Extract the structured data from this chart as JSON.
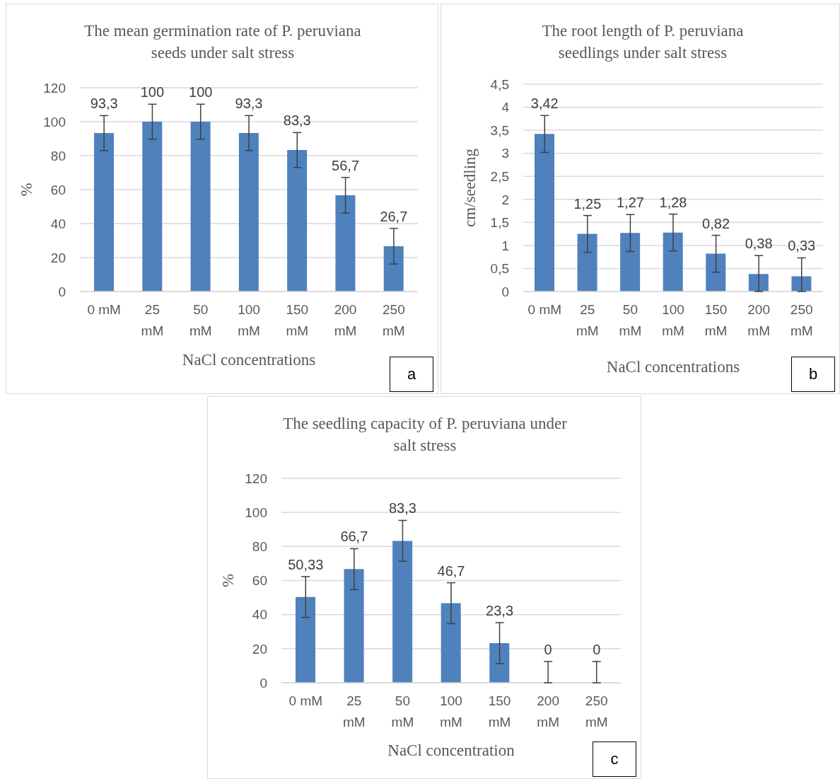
{
  "chart_data": [
    {
      "type": "bar",
      "title": "The mean germination rate of P. peruviana seeds under salt stress",
      "xlabel": "NaCl concentrations",
      "ylabel": "%",
      "categories": [
        "0 mM",
        "25 mM",
        "50 mM",
        "100 mM",
        "150 mM",
        "200 mM",
        "250 mM"
      ],
      "values": [
        93.3,
        100,
        100,
        93.3,
        83.3,
        56.7,
        26.7
      ],
      "errors": [
        10.3,
        10.3,
        10.3,
        10.3,
        10.3,
        10.5,
        10.5
      ],
      "value_labels": [
        "93,3",
        "100",
        "100",
        "93,3",
        "83,3",
        "56,7",
        "26,7"
      ],
      "color": "#4f81bd",
      "ylim": [
        0,
        120
      ],
      "yticks": [
        0,
        20,
        40,
        60,
        80,
        100,
        120
      ],
      "grid": "y",
      "legend": false,
      "annotations": [
        "a"
      ]
    },
    {
      "type": "bar",
      "title": "The root length of P. peruviana seedlings under salt stress",
      "xlabel": "NaCl concentrations",
      "ylabel": "cm/seedling",
      "categories": [
        "0 mM",
        "25 mM",
        "50 mM",
        "100 mM",
        "150 mM",
        "200 mM",
        "250 mM"
      ],
      "values": [
        3.42,
        1.25,
        1.27,
        1.28,
        0.82,
        0.38,
        0.33
      ],
      "errors": [
        0.4,
        0.4,
        0.4,
        0.4,
        0.4,
        [
          0,
          0.78
        ],
        [
          0,
          0.73
        ]
      ],
      "value_labels": [
        "3,42",
        "1,25",
        "1,27",
        "1,28",
        "0,82",
        "0,38",
        "0,33"
      ],
      "color": "#4f81bd",
      "ylim": [
        0,
        4.5
      ],
      "yticks": [
        0,
        {
          "value": 0.5,
          "label": "0,5"
        },
        1,
        {
          "value": 1.5,
          "label": "1,5"
        },
        2,
        {
          "value": 2.5,
          "label": "2,5"
        },
        3,
        {
          "value": 3.5,
          "label": "3,5"
        },
        4,
        {
          "value": 4.5,
          "label": "4,5"
        }
      ],
      "grid": "y",
      "legend": false,
      "annotations": [
        "b"
      ]
    },
    {
      "type": "bar",
      "title": "The seedling capacity of P. peruviana under salt stress",
      "xlabel": "NaCl concentration",
      "ylabel": "%",
      "categories": [
        "0 mM",
        "25 mM",
        "50 mM",
        "100 mM",
        "150 mM",
        "200 mM",
        "250 mM"
      ],
      "values": [
        50.33,
        66.7,
        83.3,
        46.7,
        23.3,
        0,
        0
      ],
      "errors": [
        12,
        12,
        12,
        12,
        12,
        [
          0,
          12.5
        ],
        [
          0,
          12.5
        ]
      ],
      "value_labels": [
        "50,33",
        "66,7",
        "83,3",
        "46,7",
        "23,3",
        "0",
        "0"
      ],
      "color": "#4f81bd",
      "ylim": [
        0,
        120
      ],
      "yticks": [
        0,
        20,
        40,
        60,
        80,
        100,
        120
      ],
      "grid": "y",
      "legend": false,
      "annotations": [
        "c"
      ]
    }
  ]
}
